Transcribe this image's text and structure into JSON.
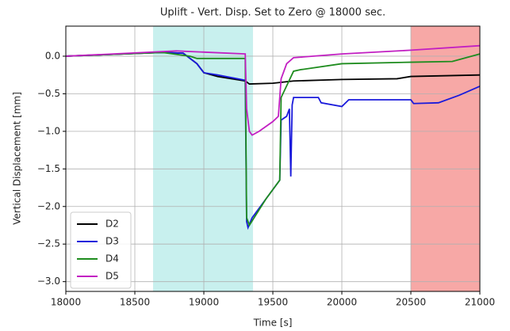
{
  "chart_data": {
    "type": "line",
    "title": "Uplift - Vert. Disp. Set to Zero @ 18000 sec.",
    "xlabel": "Time [s]",
    "ylabel": "Vertical Displacement [mm]",
    "xlim": [
      18000,
      21000
    ],
    "ylim": [
      -3.13,
      0.4
    ],
    "xticks": [
      18000,
      18500,
      19000,
      19500,
      20000,
      20500,
      21000
    ],
    "yticks": [
      {
        "value": 0,
        "label": "0.0"
      },
      {
        "value": -0.5,
        "label": "−0.5"
      },
      {
        "value": -1,
        "label": "−1.0"
      },
      {
        "value": -1.5,
        "label": "−1.5"
      },
      {
        "value": -2,
        "label": "−2.0"
      },
      {
        "value": -2.5,
        "label": "−2.5"
      },
      {
        "value": -3,
        "label": "−3.0"
      }
    ],
    "grid": true,
    "legend": "lower left",
    "spans": [
      {
        "x": [
          18632,
          19356
        ],
        "color": "#c8f0ee"
      },
      {
        "x": [
          20500,
          21000
        ],
        "color": "#f7a8a6"
      }
    ],
    "series": [
      {
        "name": "D2",
        "color": "#000000",
        "x": [
          18000,
          18700,
          18850,
          18950,
          19000,
          19100,
          19300,
          19330,
          19500,
          19650,
          20000,
          20400,
          20500,
          21000
        ],
        "values": [
          0,
          0.05,
          0.04,
          -0.1,
          -0.22,
          -0.27,
          -0.33,
          -0.37,
          -0.36,
          -0.33,
          -0.31,
          -0.3,
          -0.27,
          -0.25
        ]
      },
      {
        "name": "D3",
        "color": "#1a1adb",
        "x": [
          18000,
          18700,
          18850,
          18950,
          19000,
          19100,
          19300,
          19310,
          19320,
          19350,
          19450,
          19550,
          19560,
          19600,
          19620,
          19630,
          19640,
          19650,
          19830,
          19850,
          20000,
          20050,
          20500,
          20520,
          20700,
          20850,
          21000
        ],
        "values": [
          0,
          0.05,
          0.04,
          -0.1,
          -0.22,
          -0.25,
          -0.32,
          -2.2,
          -2.28,
          -2.15,
          -1.9,
          -1.65,
          -0.85,
          -0.8,
          -0.7,
          -1.6,
          -0.65,
          -0.55,
          -0.55,
          -0.62,
          -0.67,
          -0.58,
          -0.58,
          -0.63,
          -0.62,
          -0.52,
          -0.4
        ]
      },
      {
        "name": "D4",
        "color": "#1e8c1e",
        "x": [
          18000,
          18700,
          18900,
          18950,
          19300,
          19310,
          19330,
          19450,
          19550,
          19560,
          19650,
          19700,
          20000,
          20500,
          20800,
          21000
        ],
        "values": [
          0,
          0.05,
          0,
          -0.03,
          -0.03,
          -2.15,
          -2.25,
          -1.9,
          -1.65,
          -0.55,
          -0.2,
          -0.18,
          -0.1,
          -0.08,
          -0.07,
          0.03
        ]
      },
      {
        "name": "D5",
        "color": "#c21fc2",
        "x": [
          18000,
          18800,
          19300,
          19310,
          19330,
          19350,
          19400,
          19500,
          19540,
          19560,
          19600,
          19650,
          20000,
          20500,
          21000
        ],
        "values": [
          0,
          0.07,
          0.03,
          -0.7,
          -1,
          -1.05,
          -1,
          -0.87,
          -0.8,
          -0.3,
          -0.1,
          -0.02,
          0.03,
          0.08,
          0.14
        ]
      }
    ]
  }
}
